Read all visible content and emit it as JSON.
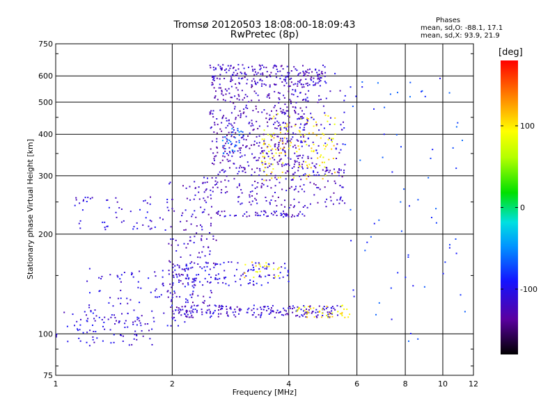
{
  "header": {
    "title": "Tromsø 20120503 18:08:00-18:09:43",
    "subtitle": "RwPretec (8p)"
  },
  "phases_box": {
    "heading": "Phases",
    "line_o": "mean, sd,O: -88.1, 17.1",
    "line_x": "mean, sd,X:  93.9, 21.9"
  },
  "colorbar": {
    "unit": "[deg]",
    "ticks": [
      {
        "label": "100",
        "value": 100
      },
      {
        "label": "0",
        "value": 0
      },
      {
        "label": "-100",
        "value": -100
      }
    ],
    "range": [
      -180,
      180
    ]
  },
  "chart_data": {
    "type": "scatter",
    "title": "Tromsø 20120503 18:08:00-18:09:43",
    "subtitle": "RwPretec (8p)",
    "xlabel": "Frequency [MHz]",
    "ylabel": "Stationary phase Virtual Height [km]",
    "xscale": "log",
    "yscale": "log",
    "xlim": [
      1,
      12
    ],
    "ylim": [
      75,
      750
    ],
    "x_ticks": [
      {
        "label": "1",
        "value": 1
      },
      {
        "label": "2",
        "value": 2
      },
      {
        "label": "4",
        "value": 4
      },
      {
        "label": "6",
        "value": 6
      },
      {
        "label": "8",
        "value": 8
      },
      {
        "label": "10",
        "value": 10
      },
      {
        "label": "12",
        "value": 12
      }
    ],
    "y_ticks": [
      {
        "label": "75",
        "value": 75
      },
      {
        "label": "100",
        "value": 100
      },
      {
        "label": "200",
        "value": 200
      },
      {
        "label": "300",
        "value": 300
      },
      {
        "label": "400",
        "value": 400
      },
      {
        "label": "500",
        "value": 500
      },
      {
        "label": "600",
        "value": 600
      },
      {
        "label": "750",
        "value": 750
      }
    ],
    "grid": true,
    "color_scale": "phase in degrees, -180 (black) to 180 (red)",
    "clusters": [
      {
        "name": "low-E-trace-1",
        "x_range": [
          1.0,
          1.8
        ],
        "y_range": [
          92,
          118
        ],
        "phase": -110,
        "count": 80
      },
      {
        "name": "low-E-trace-2",
        "x_range": [
          1.2,
          2.3
        ],
        "y_range": [
          105,
          160
        ],
        "phase": -105,
        "count": 110
      },
      {
        "name": "E-trace-horizontal",
        "x_range": [
          2.0,
          5.5
        ],
        "y_range": [
          112,
          122
        ],
        "phase": -115,
        "count": 200
      },
      {
        "name": "E-echo-yellow",
        "x_range": [
          4.2,
          5.8
        ],
        "y_range": [
          112,
          122
        ],
        "phase": 100,
        "count": 40
      },
      {
        "name": "Es-layer-1",
        "x_range": [
          2.0,
          4.0
        ],
        "y_range": [
          140,
          165
        ],
        "phase": -105,
        "count": 120
      },
      {
        "name": "Es-layer-yellow",
        "x_range": [
          3.0,
          3.8
        ],
        "y_range": [
          148,
          165
        ],
        "phase": 100,
        "count": 20
      },
      {
        "name": "vertical-scatter-2MHz",
        "x_range": [
          1.95,
          2.6
        ],
        "y_range": [
          120,
          290
        ],
        "phase": -120,
        "count": 150
      },
      {
        "name": "F-rising-1",
        "x_range": [
          1.1,
          2.0
        ],
        "y_range": [
          205,
          260
        ],
        "phase": -110,
        "count": 60
      },
      {
        "name": "F-arc-low",
        "x_range": [
          2.4,
          5.6
        ],
        "y_range": [
          240,
          320
        ],
        "phase": -120,
        "count": 200
      },
      {
        "name": "F-band-230",
        "x_range": [
          2.6,
          4.4
        ],
        "y_range": [
          225,
          235
        ],
        "phase": -115,
        "count": 60
      },
      {
        "name": "F-main-cloud",
        "x_range": [
          2.5,
          4.5
        ],
        "y_range": [
          320,
          560
        ],
        "phase": -125,
        "count": 380
      },
      {
        "name": "F-cyan-patch",
        "x_range": [
          2.7,
          3.1
        ],
        "y_range": [
          350,
          420
        ],
        "phase": -60,
        "count": 30
      },
      {
        "name": "F-top",
        "x_range": [
          2.5,
          5.0
        ],
        "y_range": [
          560,
          650
        ],
        "phase": -120,
        "count": 200
      },
      {
        "name": "F-yellow-high",
        "x_range": [
          3.4,
          5.3
        ],
        "y_range": [
          290,
          470
        ],
        "phase": 100,
        "count": 130
      },
      {
        "name": "F-x-trace-arc",
        "x_range": [
          3.8,
          5.6
        ],
        "y_range": [
          300,
          620
        ],
        "phase": -110,
        "count": 120
      },
      {
        "name": "sparse-high-freq",
        "x_range": [
          5.5,
          11.5
        ],
        "y_range": [
          90,
          600
        ],
        "phase": -80,
        "count": 70
      }
    ]
  }
}
